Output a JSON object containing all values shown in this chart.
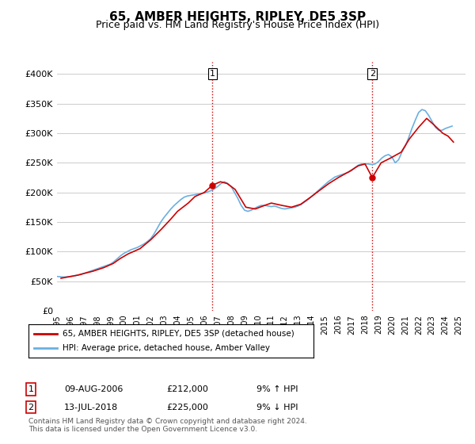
{
  "title": "65, AMBER HEIGHTS, RIPLEY, DE5 3SP",
  "subtitle": "Price paid vs. HM Land Registry's House Price Index (HPI)",
  "ylabel_ticks": [
    "£0",
    "£50K",
    "£100K",
    "£150K",
    "£200K",
    "£250K",
    "£300K",
    "£350K",
    "£400K"
  ],
  "ylabel_values": [
    0,
    50000,
    100000,
    150000,
    200000,
    250000,
    300000,
    350000,
    400000
  ],
  "ylim": [
    0,
    420000
  ],
  "xlim_start": 1995.0,
  "xlim_end": 2025.5,
  "sale1": {
    "date": 2006.6,
    "price": 212000,
    "label": "1"
  },
  "sale2": {
    "date": 2018.54,
    "price": 225000,
    "label": "2"
  },
  "line_color_hpi": "#6ab0e0",
  "line_color_price": "#cc0000",
  "vline_color": "#cc0000",
  "vline_style": ":",
  "grid_color": "#cccccc",
  "background_color": "#ffffff",
  "legend_label1": "65, AMBER HEIGHTS, RIPLEY, DE5 3SP (detached house)",
  "legend_label2": "HPI: Average price, detached house, Amber Valley",
  "annotation1_label": "1",
  "annotation1_date": "09-AUG-2006",
  "annotation1_price": "£212,000",
  "annotation1_hpi": "9% ↑ HPI",
  "annotation2_label": "2",
  "annotation2_date": "13-JUL-2018",
  "annotation2_price": "£225,000",
  "annotation2_hpi": "9% ↓ HPI",
  "footer": "Contains HM Land Registry data © Crown copyright and database right 2024.\nThis data is licensed under the Open Government Licence v3.0.",
  "hpi_data_x": [
    1995.0,
    1995.25,
    1995.5,
    1995.75,
    1996.0,
    1996.25,
    1996.5,
    1996.75,
    1997.0,
    1997.25,
    1997.5,
    1997.75,
    1998.0,
    1998.25,
    1998.5,
    1998.75,
    1999.0,
    1999.25,
    1999.5,
    1999.75,
    2000.0,
    2000.25,
    2000.5,
    2000.75,
    2001.0,
    2001.25,
    2001.5,
    2001.75,
    2002.0,
    2002.25,
    2002.5,
    2002.75,
    2003.0,
    2003.25,
    2003.5,
    2003.75,
    2004.0,
    2004.25,
    2004.5,
    2004.75,
    2005.0,
    2005.25,
    2005.5,
    2005.75,
    2006.0,
    2006.25,
    2006.5,
    2006.75,
    2007.0,
    2007.25,
    2007.5,
    2007.75,
    2008.0,
    2008.25,
    2008.5,
    2008.75,
    2009.0,
    2009.25,
    2009.5,
    2009.75,
    2010.0,
    2010.25,
    2010.5,
    2010.75,
    2011.0,
    2011.25,
    2011.5,
    2011.75,
    2012.0,
    2012.25,
    2012.5,
    2012.75,
    2013.0,
    2013.25,
    2013.5,
    2013.75,
    2014.0,
    2014.25,
    2014.5,
    2014.75,
    2015.0,
    2015.25,
    2015.5,
    2015.75,
    2016.0,
    2016.25,
    2016.5,
    2016.75,
    2017.0,
    2017.25,
    2017.5,
    2017.75,
    2018.0,
    2018.25,
    2018.5,
    2018.75,
    2019.0,
    2019.25,
    2019.5,
    2019.75,
    2020.0,
    2020.25,
    2020.5,
    2020.75,
    2021.0,
    2021.25,
    2021.5,
    2021.75,
    2022.0,
    2022.25,
    2022.5,
    2022.75,
    2023.0,
    2023.25,
    2023.5,
    2023.75,
    2024.0,
    2024.25,
    2024.5
  ],
  "hpi_data_y": [
    58000,
    57500,
    57000,
    57500,
    58000,
    59000,
    60000,
    61000,
    63000,
    65000,
    67000,
    69000,
    71000,
    73000,
    75000,
    77000,
    79000,
    83000,
    88000,
    93000,
    97000,
    100000,
    103000,
    105000,
    107000,
    110000,
    113000,
    117000,
    122000,
    130000,
    140000,
    150000,
    158000,
    165000,
    172000,
    178000,
    183000,
    188000,
    192000,
    194000,
    195000,
    196000,
    197000,
    198000,
    199000,
    201000,
    203000,
    206000,
    210000,
    215000,
    218000,
    215000,
    210000,
    200000,
    190000,
    178000,
    170000,
    168000,
    170000,
    173000,
    176000,
    178000,
    178000,
    177000,
    176000,
    177000,
    175000,
    173000,
    172000,
    173000,
    174000,
    175000,
    177000,
    180000,
    184000,
    188000,
    193000,
    198000,
    203000,
    208000,
    213000,
    218000,
    222000,
    226000,
    228000,
    230000,
    232000,
    234000,
    237000,
    242000,
    246000,
    248000,
    248000,
    248000,
    247000,
    248000,
    252000,
    258000,
    262000,
    264000,
    260000,
    250000,
    255000,
    268000,
    278000,
    292000,
    308000,
    322000,
    335000,
    340000,
    338000,
    330000,
    320000,
    310000,
    305000,
    305000,
    308000,
    310000,
    312000
  ],
  "price_data_x": [
    1995.3,
    1996.5,
    1997.0,
    1997.7,
    1998.5,
    1999.2,
    1999.7,
    2000.3,
    2001.2,
    2002.0,
    2002.8,
    2003.5,
    2004.0,
    2004.8,
    2005.3,
    2006.0,
    2006.6,
    2007.2,
    2007.7,
    2008.3,
    2009.1,
    2009.8,
    2010.5,
    2011.0,
    2011.8,
    2012.5,
    2013.2,
    2014.0,
    2014.7,
    2015.3,
    2016.0,
    2016.8,
    2017.5,
    2018.0,
    2018.54,
    2019.2,
    2019.9,
    2020.7,
    2021.3,
    2022.0,
    2022.6,
    2023.1,
    2023.8,
    2024.2,
    2024.6
  ],
  "price_data_y": [
    55000,
    60000,
    63000,
    67000,
    73000,
    80000,
    88000,
    96000,
    105000,
    120000,
    138000,
    155000,
    168000,
    182000,
    193000,
    200000,
    212000,
    218000,
    215000,
    205000,
    175000,
    172000,
    178000,
    182000,
    178000,
    175000,
    180000,
    193000,
    205000,
    215000,
    225000,
    235000,
    245000,
    248000,
    225000,
    250000,
    258000,
    268000,
    290000,
    310000,
    325000,
    315000,
    300000,
    295000,
    285000
  ]
}
